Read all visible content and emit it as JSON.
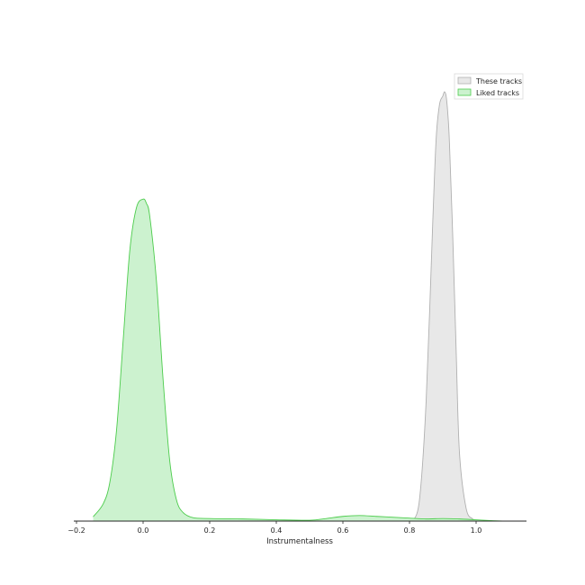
{
  "chart_data": {
    "type": "area",
    "title": "",
    "xlabel": "Instrumentalness",
    "ylabel": "",
    "xlim": [
      -0.2,
      1.15
    ],
    "ylim": [
      0,
      1
    ],
    "grid": false,
    "legend_position": "top-right",
    "x_ticks": [
      -0.2,
      0.0,
      0.2,
      0.4,
      0.6,
      0.8,
      1.0
    ],
    "x_tick_labels": [
      "−0.2",
      "0.0",
      "0.2",
      "0.4",
      "0.6",
      "0.8",
      "1.0"
    ],
    "series": [
      {
        "name": "These tracks",
        "fill": "#e8e8e8",
        "stroke": "#b0b0b0",
        "x": [
          0.81,
          0.83,
          0.85,
          0.87,
          0.88,
          0.89,
          0.9,
          0.905,
          0.91,
          0.915,
          0.92,
          0.93,
          0.94,
          0.95,
          0.97,
          0.99,
          1.0
        ],
        "y": [
          0.0,
          0.05,
          0.28,
          0.7,
          0.89,
          0.97,
          0.99,
          1.0,
          0.99,
          0.95,
          0.88,
          0.66,
          0.4,
          0.16,
          0.03,
          0.005,
          0.0
        ]
      },
      {
        "name": "Liked tracks",
        "fill": "#ccf2cf",
        "stroke": "#4ccc4c",
        "x": [
          -0.15,
          -0.12,
          -0.1,
          -0.08,
          -0.06,
          -0.04,
          -0.02,
          0.0,
          0.01,
          0.02,
          0.04,
          0.06,
          0.08,
          0.1,
          0.12,
          0.15,
          0.2,
          0.3,
          0.4,
          0.5,
          0.55,
          0.6,
          0.65,
          0.7,
          0.75,
          0.8,
          0.85,
          0.9,
          0.95,
          1.0,
          1.05,
          1.08
        ],
        "y": [
          0.01,
          0.04,
          0.09,
          0.21,
          0.42,
          0.63,
          0.73,
          0.75,
          0.74,
          0.71,
          0.56,
          0.33,
          0.14,
          0.05,
          0.02,
          0.008,
          0.006,
          0.005,
          0.003,
          0.002,
          0.006,
          0.011,
          0.013,
          0.011,
          0.009,
          0.007,
          0.005,
          0.006,
          0.005,
          0.003,
          0.001,
          0.0
        ]
      }
    ]
  }
}
